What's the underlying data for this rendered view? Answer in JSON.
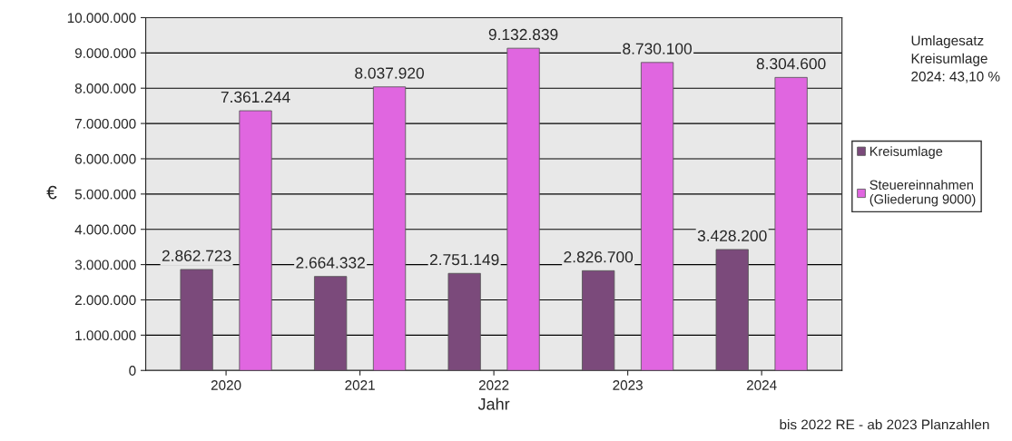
{
  "chart_data": {
    "type": "bar",
    "xlabel": "Jahr",
    "ylabel": "€",
    "categories": [
      "2020",
      "2021",
      "2022",
      "2023",
      "2024"
    ],
    "series": [
      {
        "name": "Kreisumlage",
        "color": "#7b4a7b",
        "values": [
          2862723,
          2664332,
          2751149,
          2826700,
          3428200
        ],
        "value_labels": [
          "2.862.723",
          "2.664.332",
          "2.751.149",
          "2.826.700",
          "3.428.200"
        ]
      },
      {
        "name": "Steuereinnahmen\n(Gliederung 9000)",
        "color": "#e066e0",
        "values": [
          7361244,
          8037920,
          9132839,
          8730100,
          8304600
        ],
        "value_labels": [
          "7.361.244",
          "8.037.920",
          "9.132.839",
          "8.730.100",
          "8.304.600"
        ]
      }
    ],
    "ylim": [
      0,
      10000000
    ],
    "yticks": [
      {
        "value": 0,
        "label": "0"
      },
      {
        "value": 1000000,
        "label": "1.000.000"
      },
      {
        "value": 2000000,
        "label": "2.000.000"
      },
      {
        "value": 3000000,
        "label": "3.000.000"
      },
      {
        "value": 4000000,
        "label": "4.000.000"
      },
      {
        "value": 5000000,
        "label": "5.000.000"
      },
      {
        "value": 6000000,
        "label": "6.000.000"
      },
      {
        "value": 7000000,
        "label": "7.000.000"
      },
      {
        "value": 8000000,
        "label": "8.000.000"
      },
      {
        "value": 9000000,
        "label": "9.000.000"
      },
      {
        "value": 10000000,
        "label": "10.000.000"
      }
    ],
    "grid": "y",
    "legend": "right",
    "annotations": [
      "Umlagesatz\nKreisumlage\n2024: 43,10 %",
      "bis 2022 RE - ab 2023 Planzahlen"
    ]
  }
}
